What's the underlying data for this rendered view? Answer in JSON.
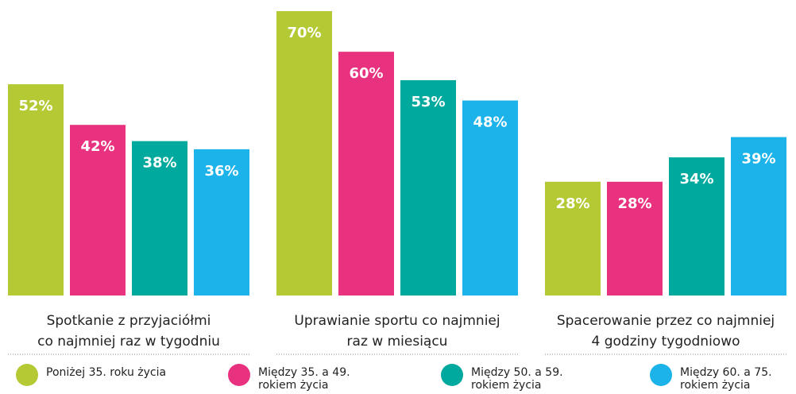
{
  "chart_data": {
    "type": "bar",
    "categories": [
      [
        "Spotkanie z przyjaciółmi",
        "co najmniej raz w tygodniu"
      ],
      [
        "Uprawianie sportu co najmniej",
        "raz w miesiącu"
      ],
      [
        "Spacerowanie przez co najmniej",
        "4 godziny tygodniowo"
      ]
    ],
    "series": [
      {
        "name": "Poniżej 35. roku życia",
        "color": "#b5c934",
        "values": [
          52,
          70,
          28
        ],
        "value_labels": [
          "52%",
          "70%",
          "28%"
        ]
      },
      {
        "name": "Między 35. a 49. rokiem życia",
        "color": "#e8327f",
        "values": [
          42,
          60,
          28
        ],
        "value_labels": [
          "42%",
          "60%",
          "28%"
        ]
      },
      {
        "name": "Między 50. a 59. rokiem życia",
        "color": "#00a99d",
        "values": [
          38,
          53,
          34
        ],
        "value_labels": [
          "38%",
          "53%",
          "34%"
        ]
      },
      {
        "name": "Między 60. a 75. rokiem życia",
        "color": "#1bb3ea",
        "values": [
          36,
          48,
          39
        ],
        "value_labels": [
          "36%",
          "48%",
          "39%"
        ]
      }
    ],
    "legend": "bottom"
  }
}
